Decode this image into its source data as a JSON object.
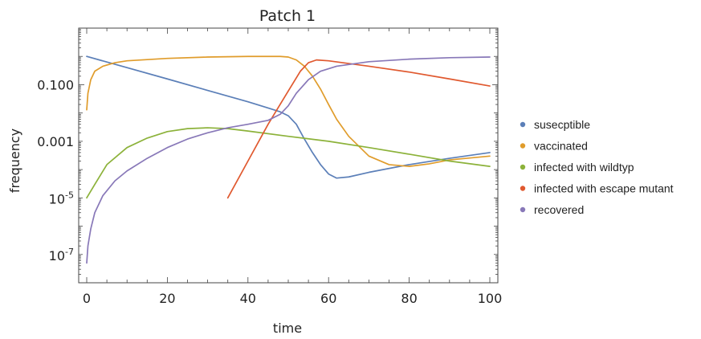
{
  "chart_data": {
    "type": "line",
    "title": "Patch 1",
    "xlabel": "time",
    "ylabel": "frequency",
    "xlim": [
      0,
      100
    ],
    "ylim": [
      1e-08,
      10
    ],
    "yscale": "log",
    "grid": false,
    "legend_position": "right",
    "x_ticks": [
      {
        "value": 0,
        "label": "0"
      },
      {
        "value": 20,
        "label": "20"
      },
      {
        "value": 40,
        "label": "40"
      },
      {
        "value": 60,
        "label": "60"
      },
      {
        "value": 80,
        "label": "80"
      },
      {
        "value": 100,
        "label": "100"
      }
    ],
    "y_ticks": [
      {
        "value": 1e-07,
        "base": "10",
        "exp": "-7",
        "label": ""
      },
      {
        "value": 1e-05,
        "base": "10",
        "exp": "-5",
        "label": ""
      },
      {
        "value": 0.001,
        "base": "",
        "exp": "",
        "label": "0.001"
      },
      {
        "value": 0.1,
        "base": "",
        "exp": "",
        "label": "0.100"
      }
    ],
    "series": [
      {
        "name": "susecptible",
        "color": "#5b7fb8",
        "points": [
          [
            0,
            1.0
          ],
          [
            10,
            0.4
          ],
          [
            20,
            0.16
          ],
          [
            30,
            0.063
          ],
          [
            40,
            0.025
          ],
          [
            45,
            0.015
          ],
          [
            48,
            0.011
          ],
          [
            50,
            0.008
          ],
          [
            52,
            0.004
          ],
          [
            54,
            0.0012
          ],
          [
            56,
            0.0004
          ],
          [
            58,
            0.00015
          ],
          [
            60,
            7e-05
          ],
          [
            62,
            5e-05
          ],
          [
            65,
            5.5e-05
          ],
          [
            70,
            8e-05
          ],
          [
            80,
            0.00015
          ],
          [
            90,
            0.00025
          ],
          [
            100,
            0.0004
          ]
        ]
      },
      {
        "name": "vaccinated",
        "color": "#e09c2b",
        "points": [
          [
            0,
            0.013
          ],
          [
            0.3,
            0.05
          ],
          [
            1,
            0.15
          ],
          [
            2,
            0.3
          ],
          [
            4,
            0.45
          ],
          [
            7,
            0.6
          ],
          [
            10,
            0.7
          ],
          [
            20,
            0.85
          ],
          [
            30,
            0.95
          ],
          [
            40,
            1.0
          ],
          [
            48,
            1.0
          ],
          [
            50,
            0.95
          ],
          [
            52,
            0.75
          ],
          [
            54,
            0.45
          ],
          [
            56,
            0.2
          ],
          [
            58,
            0.07
          ],
          [
            60,
            0.02
          ],
          [
            62,
            0.006
          ],
          [
            65,
            0.0015
          ],
          [
            70,
            0.0003
          ],
          [
            75,
            0.00015
          ],
          [
            80,
            0.00013
          ],
          [
            85,
            0.00016
          ],
          [
            90,
            0.00022
          ],
          [
            100,
            0.0003
          ]
        ]
      },
      {
        "name": "infected with wildtyp",
        "color": "#8cb23a",
        "points": [
          [
            0,
            1e-05
          ],
          [
            2,
            3e-05
          ],
          [
            5,
            0.00015
          ],
          [
            10,
            0.0006
          ],
          [
            15,
            0.0013
          ],
          [
            20,
            0.0022
          ],
          [
            25,
            0.0028
          ],
          [
            30,
            0.003
          ],
          [
            35,
            0.0028
          ],
          [
            40,
            0.0023
          ],
          [
            50,
            0.0015
          ],
          [
            60,
            0.001
          ],
          [
            70,
            0.0006
          ],
          [
            80,
            0.00035
          ],
          [
            90,
            0.0002
          ],
          [
            100,
            0.00013
          ]
        ]
      },
      {
        "name": "infected with escape mutant",
        "color": "#e0592f",
        "points": [
          [
            35,
            1e-05
          ],
          [
            40,
            0.0002
          ],
          [
            45,
            0.004
          ],
          [
            50,
            0.06
          ],
          [
            53,
            0.3
          ],
          [
            55,
            0.6
          ],
          [
            57,
            0.75
          ],
          [
            60,
            0.7
          ],
          [
            70,
            0.45
          ],
          [
            80,
            0.28
          ],
          [
            90,
            0.16
          ],
          [
            100,
            0.09
          ]
        ]
      },
      {
        "name": "recovered",
        "color": "#8878b8",
        "points": [
          [
            0,
            5e-08
          ],
          [
            0.3,
            2e-07
          ],
          [
            1,
            8e-07
          ],
          [
            2,
            3e-06
          ],
          [
            4,
            1.2e-05
          ],
          [
            7,
            4e-05
          ],
          [
            10,
            9e-05
          ],
          [
            15,
            0.00025
          ],
          [
            20,
            0.0006
          ],
          [
            25,
            0.0012
          ],
          [
            30,
            0.002
          ],
          [
            35,
            0.003
          ],
          [
            40,
            0.004
          ],
          [
            45,
            0.0055
          ],
          [
            48,
            0.009
          ],
          [
            50,
            0.018
          ],
          [
            52,
            0.05
          ],
          [
            55,
            0.15
          ],
          [
            58,
            0.3
          ],
          [
            62,
            0.45
          ],
          [
            70,
            0.65
          ],
          [
            80,
            0.8
          ],
          [
            90,
            0.9
          ],
          [
            100,
            0.95
          ]
        ]
      }
    ]
  }
}
